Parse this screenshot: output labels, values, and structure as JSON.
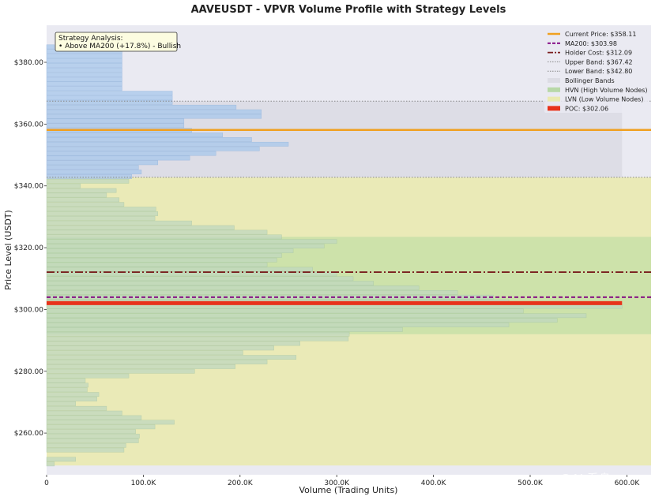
{
  "chart_data": {
    "type": "bar",
    "orientation": "horizontal",
    "title": "AAVEUSDT - VPVR Volume Profile with Strategy Levels",
    "xlabel": "Volume (Trading Units)",
    "ylabel": "Price Level (USDT)",
    "xlim": [
      0,
      625000
    ],
    "ylim": [
      246.5,
      392
    ],
    "x_ticks": [
      {
        "value": 0,
        "label": "0"
      },
      {
        "value": 100000,
        "label": "100.0K"
      },
      {
        "value": 200000,
        "label": "200.0K"
      },
      {
        "value": 300000,
        "label": "300.0K"
      },
      {
        "value": 400000,
        "label": "400.0K"
      },
      {
        "value": 500000,
        "label": "500.0K"
      },
      {
        "value": 600000,
        "label": "600.0K"
      }
    ],
    "y_ticks": [
      {
        "value": 260,
        "label": "$260.00"
      },
      {
        "value": 280,
        "label": "$280.00"
      },
      {
        "value": 300,
        "label": "$300.00"
      },
      {
        "value": 320,
        "label": "$320.00"
      },
      {
        "value": 340,
        "label": "$340.00"
      },
      {
        "value": 360,
        "label": "$360.00"
      },
      {
        "value": 380,
        "label": "$380.00"
      }
    ],
    "bin_height": 1.5,
    "bins": [
      {
        "price": 250.0,
        "volume": 8000
      },
      {
        "price": 251.5,
        "volume": 30000
      },
      {
        "price": 253.0,
        "volume": 0
      },
      {
        "price": 254.5,
        "volume": 80000
      },
      {
        "price": 256.0,
        "volume": 82000
      },
      {
        "price": 257.5,
        "volume": 95000
      },
      {
        "price": 259.0,
        "volume": 96000
      },
      {
        "price": 260.5,
        "volume": 92000
      },
      {
        "price": 262.0,
        "volume": 112000
      },
      {
        "price": 263.5,
        "volume": 132000
      },
      {
        "price": 265.0,
        "volume": 98000
      },
      {
        "price": 266.5,
        "volume": 78000
      },
      {
        "price": 268.0,
        "volume": 62000
      },
      {
        "price": 269.5,
        "volume": 30000
      },
      {
        "price": 271.0,
        "volume": 52000
      },
      {
        "price": 272.5,
        "volume": 54000
      },
      {
        "price": 274.0,
        "volume": 42000
      },
      {
        "price": 275.5,
        "volume": 43000
      },
      {
        "price": 277.0,
        "volume": 40000
      },
      {
        "price": 278.5,
        "volume": 85000
      },
      {
        "price": 280.0,
        "volume": 153000
      },
      {
        "price": 281.5,
        "volume": 195000
      },
      {
        "price": 283.0,
        "volume": 228000
      },
      {
        "price": 284.5,
        "volume": 258000
      },
      {
        "price": 286.0,
        "volume": 203000
      },
      {
        "price": 287.5,
        "volume": 235000
      },
      {
        "price": 289.0,
        "volume": 262000
      },
      {
        "price": 290.5,
        "volume": 312000
      },
      {
        "price": 292.0,
        "volume": 313000
      },
      {
        "price": 293.5,
        "volume": 368000
      },
      {
        "price": 295.0,
        "volume": 478000
      },
      {
        "price": 296.5,
        "volume": 528000
      },
      {
        "price": 298.0,
        "volume": 558000
      },
      {
        "price": 299.5,
        "volume": 493000
      },
      {
        "price": 301.0,
        "volume": 595000
      },
      {
        "price": 302.5,
        "volume": 478000
      },
      {
        "price": 304.0,
        "volume": 462000
      },
      {
        "price": 305.5,
        "volume": 425000
      },
      {
        "price": 307.0,
        "volume": 385000
      },
      {
        "price": 308.5,
        "volume": 338000
      },
      {
        "price": 310.0,
        "volume": 317000
      },
      {
        "price": 311.5,
        "volume": 300000
      },
      {
        "price": 313.0,
        "volume": 275000
      },
      {
        "price": 314.5,
        "volume": 228000
      },
      {
        "price": 316.0,
        "volume": 238000
      },
      {
        "price": 317.5,
        "volume": 243000
      },
      {
        "price": 319.0,
        "volume": 255000
      },
      {
        "price": 320.5,
        "volume": 287000
      },
      {
        "price": 322.0,
        "volume": 300000
      },
      {
        "price": 323.5,
        "volume": 243000
      },
      {
        "price": 325.0,
        "volume": 228000
      },
      {
        "price": 326.5,
        "volume": 194000
      },
      {
        "price": 328.0,
        "volume": 150000
      },
      {
        "price": 329.5,
        "volume": 112000
      },
      {
        "price": 331.0,
        "volume": 115000
      },
      {
        "price": 332.5,
        "volume": 113000
      },
      {
        "price": 334.0,
        "volume": 80000
      },
      {
        "price": 335.5,
        "volume": 75000
      },
      {
        "price": 337.0,
        "volume": 62000
      },
      {
        "price": 338.5,
        "volume": 72000
      },
      {
        "price": 340.0,
        "volume": 35000
      },
      {
        "price": 341.5,
        "volume": 85000
      },
      {
        "price": 343.0,
        "volume": 88000
      },
      {
        "price": 344.5,
        "volume": 98000
      },
      {
        "price": 346.0,
        "volume": 95000
      },
      {
        "price": 347.5,
        "volume": 115000
      },
      {
        "price": 349.0,
        "volume": 148000
      },
      {
        "price": 350.5,
        "volume": 175000
      },
      {
        "price": 352.0,
        "volume": 220000
      },
      {
        "price": 353.5,
        "volume": 250000
      },
      {
        "price": 355.0,
        "volume": 212000
      },
      {
        "price": 356.5,
        "volume": 182000
      },
      {
        "price": 358.0,
        "volume": 150000
      },
      {
        "price": 359.5,
        "volume": 142000
      },
      {
        "price": 361.0,
        "volume": 142000
      },
      {
        "price": 362.5,
        "volume": 222000
      },
      {
        "price": 364.0,
        "volume": 222000
      },
      {
        "price": 365.5,
        "volume": 196000
      },
      {
        "price": 367.0,
        "volume": 130000
      },
      {
        "price": 368.5,
        "volume": 130000
      },
      {
        "price": 370.0,
        "volume": 130000
      },
      {
        "price": 371.5,
        "volume": 78000
      },
      {
        "price": 373.0,
        "volume": 78000
      },
      {
        "price": 374.5,
        "volume": 78000
      },
      {
        "price": 376.0,
        "volume": 78000
      },
      {
        "price": 377.5,
        "volume": 78000
      },
      {
        "price": 379.0,
        "volume": 78000
      },
      {
        "price": 380.5,
        "volume": 78000
      },
      {
        "price": 382.0,
        "volume": 78000
      },
      {
        "price": 383.5,
        "volume": 78000
      },
      {
        "price": 385.0,
        "volume": 8000
      }
    ],
    "levels": {
      "current_price": {
        "value": 358.11,
        "label": "Current Price: $358.11",
        "color": "#f0a020"
      },
      "ma200": {
        "value": 303.98,
        "label": "MA200: $303.98",
        "color": "#800080"
      },
      "holder_cost": {
        "value": 312.09,
        "label": "Holder Cost: $312.09",
        "color": "#7a1f1f"
      },
      "upper_band": {
        "value": 367.42,
        "label": "Upper Band: $367.42",
        "color": "#888888"
      },
      "lower_band": {
        "value": 342.8,
        "label": "Lower Band: $342.80",
        "color": "#888888"
      },
      "poc": {
        "value": 302.06,
        "label": "POC: $302.06",
        "color": "#e8321a"
      }
    },
    "zones": {
      "lvn": {
        "from": 249.5,
        "to": 342.8,
        "label": "LVN (Low Volume Nodes)",
        "color": "#eaeab0"
      },
      "hvn": {
        "from": 292.0,
        "to": 323.5,
        "label": "HVN (High Volume Nodes)",
        "color": "#c8e0a8"
      },
      "bollinger": {
        "from": 342.8,
        "to": 367.42,
        "label": "Bollinger Bands",
        "color": "#dcdce4"
      }
    },
    "legend_position": "top-right",
    "grid": false,
    "colors": {
      "plot_bg": "#eaeaf2",
      "bar_upper": "#a8c8ec",
      "bar_lower": "#c0d8c0"
    }
  },
  "annotation": {
    "heading": "Strategy Analysis:",
    "line1": "• Above MA200 (+17.8%) - Bullish"
  },
  "watermark": "◇ @AI 看盘"
}
